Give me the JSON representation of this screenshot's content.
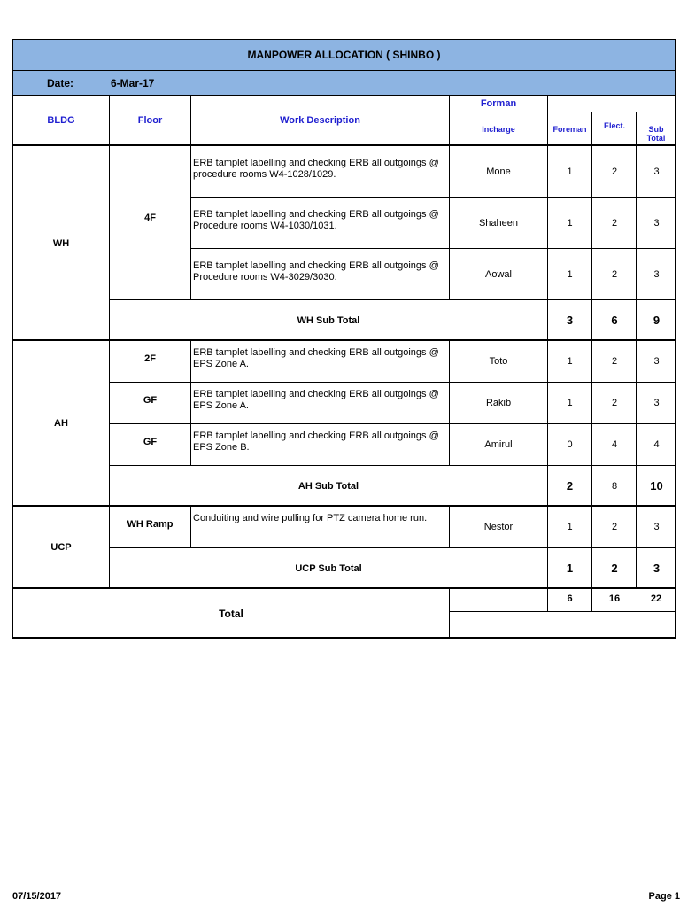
{
  "title": "MANPOWER ALLOCATION  ( SHINBO )",
  "date_label": "Date:",
  "date_value": "6-Mar-17",
  "headers": {
    "bldg": "BLDG",
    "floor": "Floor",
    "work": "Work Description",
    "forman": "Forman",
    "incharge": "Incharge",
    "foreman": "Foreman",
    "elect": "Elect.",
    "subtotal": "Sub Total"
  },
  "groups": [
    {
      "bldg": "WH",
      "rows": [
        {
          "floor": "4F",
          "desc": "ERB tamplet labelling and checking ERB all outgoings @ procedure rooms W4-1028/1029.",
          "incharge": "Mone",
          "foreman": "1",
          "elect": "2",
          "sub": "3"
        },
        {
          "floor": "",
          "desc": "ERB tamplet labelling and checking ERB all outgoings @ Procedure rooms W4-1030/1031.",
          "incharge": "Shaheen",
          "foreman": "1",
          "elect": "2",
          "sub": "3"
        },
        {
          "floor": "",
          "desc": "ERB tamplet labelling and checking ERB all outgoings @ Procedure rooms W4-3029/3030.",
          "incharge": "Aowal",
          "foreman": "1",
          "elect": "2",
          "sub": "3"
        }
      ],
      "subtotal": {
        "label": "WH Sub Total",
        "foreman": "3",
        "elect": "6",
        "sub": "9"
      }
    },
    {
      "bldg": "AH",
      "rows": [
        {
          "floor": "2F",
          "desc": "ERB tamplet labelling and checking ERB all outgoings @ EPS Zone A.",
          "incharge": "Toto",
          "foreman": "1",
          "elect": "2",
          "sub": "3"
        },
        {
          "floor": "GF",
          "desc": "ERB tamplet labelling and checking ERB all outgoings @ EPS Zone A.",
          "incharge": "Rakib",
          "foreman": "1",
          "elect": "2",
          "sub": "3"
        },
        {
          "floor": "GF",
          "desc": "ERB tamplet labelling and checking ERB all outgoings @ EPS Zone B.",
          "incharge": "Amirul",
          "foreman": "0",
          "elect": "4",
          "sub": "4"
        }
      ],
      "subtotal": {
        "label": "AH Sub Total",
        "foreman": "2",
        "elect": "8",
        "sub": "10"
      }
    },
    {
      "bldg": "UCP",
      "rows": [
        {
          "floor": "WH Ramp",
          "desc": "Conduiting and wire pulling for PTZ camera home run.",
          "incharge": "Nestor",
          "foreman": "1",
          "elect": "2",
          "sub": "3"
        }
      ],
      "subtotal": {
        "label": "UCP Sub Total",
        "foreman": "1",
        "elect": "2",
        "sub": "3"
      }
    }
  ],
  "total": {
    "label": "Total",
    "foreman": "6",
    "elect": "16",
    "sub": "22"
  },
  "footer": {
    "date": "07/15/2017",
    "page": "Page 1"
  },
  "colors": {
    "header_bg": "#8db4e2",
    "header_text": "#1f1fd0"
  }
}
